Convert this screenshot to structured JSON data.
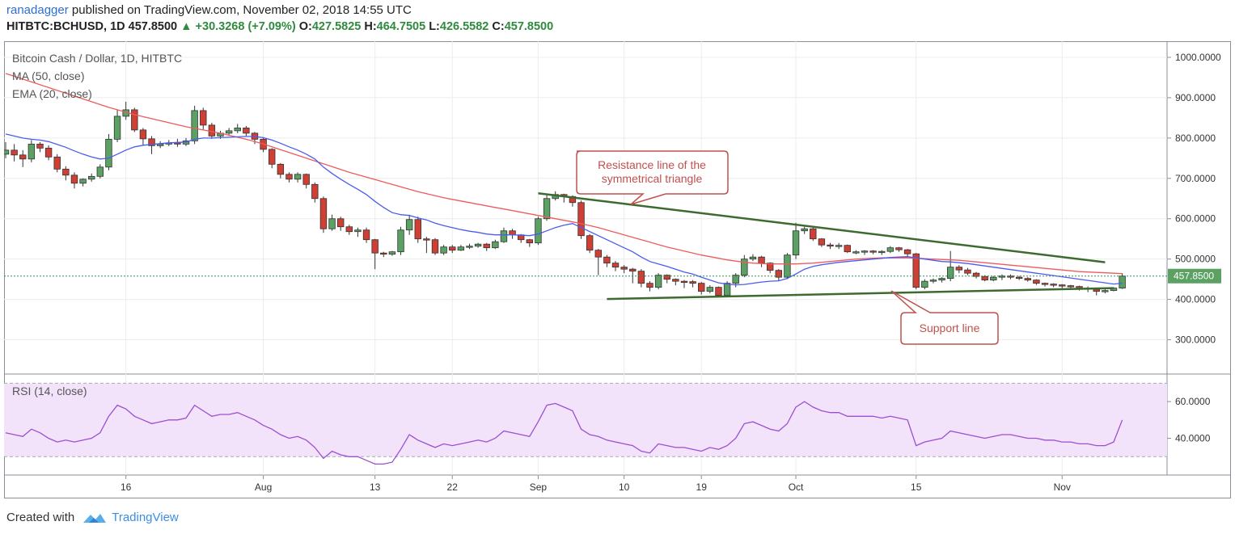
{
  "header": {
    "author": "ranadagger",
    "published_text": "published on TradingView.com, November 02, 2018 14:55 UTC",
    "symbol": "HITBTC:BCHUSD, 1D",
    "last": "457.8500",
    "change": "+30.3268 (+7.09%)",
    "o_label": "O:",
    "o_value": "427.5825",
    "h_label": "H:",
    "h_value": "464.7505",
    "l_label": "L:",
    "l_value": "426.5582",
    "c_label": "C:",
    "c_value": "457.8500"
  },
  "legend": {
    "title": "Bitcoin Cash / Dollar, 1D, HITBTC",
    "ma": "MA (50, close)",
    "ema": "EMA (20, close)",
    "rsi": "RSI (14, close)"
  },
  "annotations": {
    "resistance_line1": "Resistance line of the",
    "resistance_line2": "symmetrical triangle",
    "support": "Support line"
  },
  "footer": {
    "created_with": "Created with",
    "brand": "TradingView"
  },
  "colors": {
    "up": "#5aa163",
    "down": "#cf3f33",
    "ma": "#ef5b5b",
    "ema": "#4a5cf0",
    "trend": "#3d6b2f",
    "rsi": "#9b4fd1",
    "rsi_band": "#f2e3fb",
    "callout": "#c0504d"
  },
  "chart_data": {
    "type": "candlestick",
    "price_axis": {
      "min": 215,
      "max": 1040,
      "ticks": [
        1000,
        900,
        800,
        700,
        600,
        500,
        400,
        300
      ],
      "tick_labels": [
        "1000.0000",
        "900.0000",
        "800.0000",
        "700.0000",
        "600.0000",
        "500.0000",
        "400.0000",
        "300.0000"
      ],
      "current_label": "457.8500",
      "current": 457.85
    },
    "rsi_axis": {
      "min": 20,
      "max": 75,
      "ticks": [
        60,
        40
      ],
      "tick_labels": [
        "60.0000",
        "40.0000"
      ],
      "band": [
        30,
        70
      ]
    },
    "x_axis": {
      "labels": [
        {
          "text": "16",
          "day": 14
        },
        {
          "text": "Aug",
          "day": 30
        },
        {
          "text": "13",
          "day": 43
        },
        {
          "text": "22",
          "day": 52
        },
        {
          "text": "Sep",
          "day": 62
        },
        {
          "text": "10",
          "day": 72
        },
        {
          "text": "19",
          "day": 81
        },
        {
          "text": "Oct",
          "day": 92
        },
        {
          "text": "15",
          "day": 106
        },
        {
          "text": "Nov",
          "day": 123
        }
      ],
      "start_date": "2018-07-02",
      "days": 131
    },
    "close": [
      770,
      758,
      748,
      785,
      775,
      753,
      723,
      708,
      688,
      698,
      705,
      728,
      797,
      854,
      870,
      820,
      798,
      781,
      785,
      788,
      785,
      793,
      868,
      832,
      805,
      812,
      818,
      825,
      812,
      797,
      772,
      735,
      710,
      698,
      710,
      685,
      650,
      575,
      600,
      580,
      568,
      572,
      548,
      515,
      512,
      518,
      572,
      598,
      550,
      548,
      515,
      530,
      522,
      530,
      532,
      537,
      528,
      543,
      570,
      560,
      548,
      540,
      600,
      650,
      660,
      655,
      640,
      558,
      522,
      505,
      490,
      480,
      475,
      470,
      440,
      430,
      460,
      450,
      445,
      444,
      440,
      420,
      430,
      410,
      440,
      460,
      500,
      505,
      490,
      472,
      455,
      510,
      570,
      575,
      550,
      535,
      534,
      534,
      518,
      518,
      520,
      519,
      519,
      528,
      523,
      513,
      430,
      445,
      448,
      452,
      480,
      473,
      465,
      457,
      448,
      455,
      458,
      455,
      452,
      448,
      440,
      438,
      436,
      434,
      432,
      428,
      425,
      420,
      422,
      428,
      458
    ],
    "open": [
      760,
      770,
      758,
      748,
      785,
      775,
      753,
      723,
      708,
      688,
      698,
      705,
      728,
      797,
      854,
      870,
      820,
      798,
      781,
      785,
      788,
      785,
      793,
      868,
      832,
      805,
      812,
      818,
      825,
      812,
      797,
      772,
      735,
      710,
      698,
      710,
      685,
      650,
      575,
      600,
      580,
      568,
      572,
      548,
      515,
      512,
      518,
      572,
      598,
      550,
      548,
      515,
      530,
      522,
      530,
      532,
      537,
      528,
      543,
      570,
      560,
      548,
      540,
      600,
      650,
      660,
      655,
      640,
      558,
      522,
      505,
      490,
      480,
      475,
      470,
      440,
      430,
      460,
      450,
      445,
      444,
      440,
      420,
      430,
      410,
      440,
      460,
      500,
      505,
      490,
      472,
      455,
      510,
      570,
      575,
      550,
      535,
      534,
      534,
      518,
      518,
      520,
      519,
      519,
      528,
      523,
      513,
      430,
      445,
      448,
      452,
      480,
      473,
      465,
      457,
      448,
      455,
      458,
      455,
      452,
      448,
      440,
      438,
      436,
      434,
      432,
      428,
      425,
      420,
      422,
      428
    ],
    "high": [
      790,
      785,
      770,
      795,
      790,
      782,
      760,
      730,
      715,
      700,
      712,
      735,
      810,
      870,
      890,
      875,
      825,
      805,
      792,
      795,
      798,
      800,
      880,
      875,
      838,
      818,
      825,
      835,
      830,
      815,
      800,
      775,
      738,
      715,
      715,
      712,
      690,
      655,
      610,
      605,
      585,
      578,
      578,
      550,
      518,
      520,
      580,
      610,
      605,
      555,
      552,
      535,
      535,
      535,
      538,
      540,
      540,
      548,
      578,
      575,
      562,
      550,
      605,
      658,
      668,
      662,
      658,
      645,
      562,
      525,
      510,
      495,
      485,
      478,
      475,
      445,
      465,
      462,
      452,
      448,
      448,
      443,
      435,
      432,
      445,
      465,
      510,
      512,
      508,
      492,
      475,
      515,
      590,
      580,
      578,
      552,
      540,
      540,
      536,
      522,
      522,
      522,
      522,
      532,
      530,
      525,
      515,
      450,
      452,
      455,
      520,
      485,
      478,
      468,
      460,
      458,
      462,
      462,
      458,
      455,
      450,
      442,
      440,
      438,
      436,
      434,
      432,
      428,
      425,
      430,
      465
    ],
    "low": [
      750,
      742,
      728,
      740,
      765,
      745,
      715,
      695,
      675,
      680,
      692,
      700,
      720,
      790,
      845,
      815,
      782,
      760,
      775,
      780,
      778,
      780,
      785,
      820,
      798,
      798,
      805,
      812,
      805,
      785,
      765,
      725,
      700,
      690,
      690,
      675,
      640,
      565,
      570,
      570,
      560,
      555,
      540,
      475,
      505,
      508,
      510,
      560,
      540,
      515,
      510,
      510,
      515,
      520,
      525,
      528,
      520,
      525,
      540,
      550,
      540,
      530,
      535,
      595,
      645,
      640,
      630,
      550,
      515,
      460,
      480,
      470,
      465,
      440,
      430,
      420,
      425,
      440,
      435,
      428,
      430,
      412,
      415,
      405,
      408,
      430,
      455,
      495,
      480,
      465,
      445,
      450,
      500,
      562,
      545,
      530,
      525,
      525,
      515,
      512,
      510,
      512,
      510,
      515,
      518,
      505,
      425,
      425,
      440,
      442,
      445,
      465,
      460,
      452,
      445,
      445,
      448,
      450,
      448,
      444,
      436,
      432,
      430,
      428,
      426,
      422,
      418,
      410,
      415,
      420,
      426
    ],
    "ma50": [
      960,
      953,
      946,
      939,
      932,
      925,
      918,
      911,
      904,
      897,
      890,
      883,
      876,
      870,
      864,
      858,
      853,
      848,
      843,
      838,
      833,
      828,
      824,
      820,
      816,
      812,
      807,
      802,
      797,
      791,
      785,
      778,
      771,
      764,
      757,
      750,
      743,
      736,
      729,
      722,
      715,
      709,
      703,
      697,
      691,
      685,
      679,
      673,
      667,
      662,
      657,
      652,
      648,
      644,
      640,
      636,
      632,
      628,
      624,
      620,
      616,
      612,
      608,
      604,
      600,
      596,
      592,
      588,
      583,
      578,
      572,
      566,
      560,
      554,
      548,
      542,
      536,
      530,
      525,
      520,
      515,
      510,
      506,
      502,
      498,
      495,
      492,
      490,
      489,
      488,
      488,
      488,
      488,
      489,
      490,
      492,
      494,
      496,
      498,
      500,
      501,
      502,
      503,
      503,
      503,
      503,
      502,
      501,
      500,
      499,
      498,
      497,
      495,
      493,
      491,
      489,
      487,
      485,
      483,
      481,
      479,
      477,
      475,
      473,
      471,
      469,
      468,
      467,
      466,
      465,
      464
    ],
    "ema20": [
      810,
      805,
      800,
      797,
      795,
      791,
      784,
      777,
      768,
      760,
      753,
      748,
      750,
      760,
      770,
      778,
      782,
      784,
      786,
      788,
      789,
      790,
      797,
      800,
      800,
      801,
      802,
      803,
      804,
      804,
      801,
      795,
      787,
      778,
      770,
      760,
      748,
      728,
      712,
      698,
      685,
      673,
      660,
      643,
      628,
      615,
      610,
      608,
      602,
      597,
      589,
      583,
      578,
      573,
      569,
      566,
      562,
      560,
      560,
      560,
      559,
      558,
      562,
      570,
      578,
      584,
      588,
      578,
      568,
      558,
      548,
      538,
      528,
      518,
      505,
      494,
      488,
      482,
      475,
      468,
      463,
      455,
      448,
      441,
      438,
      436,
      437,
      440,
      443,
      445,
      446,
      452,
      463,
      475,
      482,
      486,
      489,
      492,
      494,
      496,
      498,
      500,
      502,
      504,
      505,
      506,
      503,
      500,
      497,
      494,
      493,
      491,
      489,
      486,
      483,
      480,
      477,
      474,
      471,
      468,
      465,
      462,
      459,
      456,
      453,
      450,
      447,
      444,
      441,
      438,
      440
    ],
    "rsi": [
      43,
      42,
      41,
      45,
      43,
      40,
      38,
      39,
      38,
      39,
      40,
      43,
      52,
      58,
      56,
      52,
      50,
      48,
      49,
      50,
      50,
      51,
      58,
      55,
      52,
      53,
      53,
      54,
      52,
      50,
      47,
      45,
      42,
      40,
      41,
      39,
      35,
      29,
      33,
      31,
      30,
      30,
      28,
      26,
      26,
      27,
      34,
      42,
      39,
      37,
      35,
      37,
      36,
      37,
      38,
      39,
      38,
      40,
      44,
      43,
      42,
      41,
      49,
      58,
      59,
      57,
      55,
      45,
      42,
      41,
      39,
      38,
      37,
      36,
      33,
      32,
      37,
      36,
      35,
      35,
      34,
      33,
      35,
      34,
      36,
      40,
      48,
      49,
      47,
      45,
      44,
      48,
      57,
      60,
      57,
      55,
      54,
      54,
      52,
      52,
      52,
      52,
      51,
      52,
      51,
      50,
      36,
      38,
      39,
      40,
      44,
      43,
      42,
      41,
      40,
      41,
      42,
      42,
      41,
      40,
      40,
      39,
      39,
      38,
      38,
      37,
      37,
      36,
      36,
      38,
      50
    ],
    "resistance_line": [
      [
        62,
        663
      ],
      [
        128,
        492
      ]
    ],
    "support_line": [
      [
        70,
        401
      ],
      [
        129,
        428
      ]
    ]
  }
}
